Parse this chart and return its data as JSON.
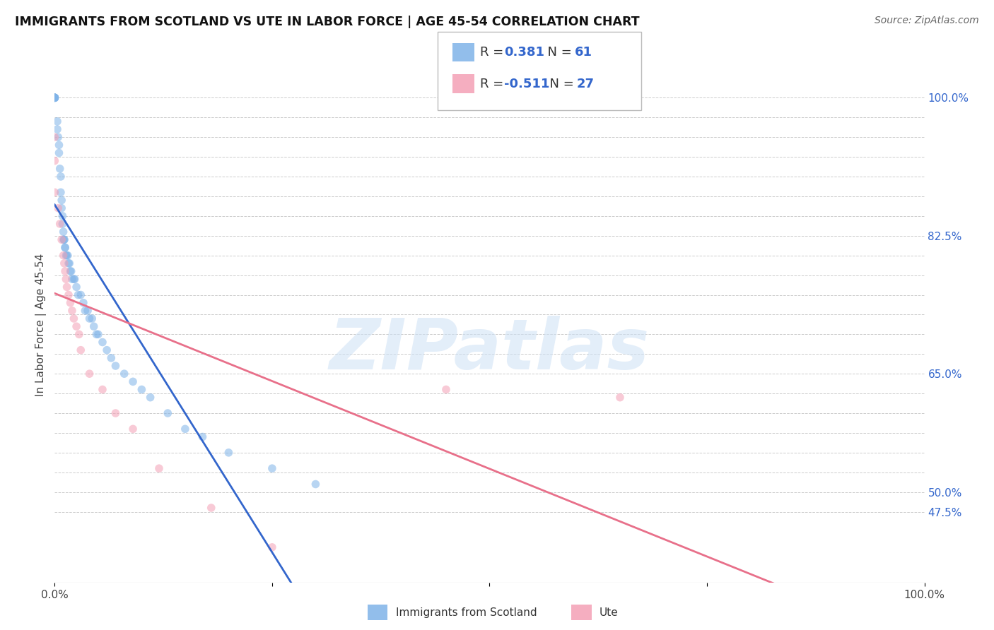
{
  "title": "IMMIGRANTS FROM SCOTLAND VS UTE IN LABOR FORCE | AGE 45-54 CORRELATION CHART",
  "source": "Source: ZipAtlas.com",
  "ylabel": "In Labor Force | Age 45-54",
  "xlim": [
    0.0,
    1.0
  ],
  "ylim": [
    0.385,
    1.04
  ],
  "grid_color": "#cccccc",
  "background_color": "#ffffff",
  "scotland_color": "#7fb3e8",
  "ute_color": "#f4a0b5",
  "scotland_line_color": "#3366cc",
  "ute_line_color": "#e8708a",
  "legend_color": "#3366cc",
  "R_scotland": 0.381,
  "N_scotland": 61,
  "R_ute": -0.511,
  "N_ute": 27,
  "scotland_x": [
    0.0,
    0.0,
    0.0,
    0.0,
    0.0,
    0.0,
    0.0,
    0.0,
    0.003,
    0.003,
    0.004,
    0.005,
    0.005,
    0.006,
    0.007,
    0.007,
    0.008,
    0.008,
    0.009,
    0.009,
    0.01,
    0.01,
    0.011,
    0.011,
    0.012,
    0.012,
    0.013,
    0.014,
    0.015,
    0.016,
    0.017,
    0.018,
    0.019,
    0.02,
    0.022,
    0.023,
    0.025,
    0.027,
    0.03,
    0.033,
    0.035,
    0.038,
    0.04,
    0.043,
    0.045,
    0.048,
    0.05,
    0.055,
    0.06,
    0.065,
    0.07,
    0.08,
    0.09,
    0.1,
    0.11,
    0.13,
    0.15,
    0.17,
    0.2,
    0.25,
    0.3
  ],
  "scotland_y": [
    1.0,
    1.0,
    1.0,
    1.0,
    1.0,
    1.0,
    1.0,
    1.0,
    0.97,
    0.96,
    0.95,
    0.94,
    0.93,
    0.91,
    0.9,
    0.88,
    0.87,
    0.86,
    0.85,
    0.84,
    0.83,
    0.82,
    0.82,
    0.82,
    0.81,
    0.81,
    0.8,
    0.8,
    0.8,
    0.79,
    0.79,
    0.78,
    0.78,
    0.77,
    0.77,
    0.77,
    0.76,
    0.75,
    0.75,
    0.74,
    0.73,
    0.73,
    0.72,
    0.72,
    0.71,
    0.7,
    0.7,
    0.69,
    0.68,
    0.67,
    0.66,
    0.65,
    0.64,
    0.63,
    0.62,
    0.6,
    0.58,
    0.57,
    0.55,
    0.53,
    0.51
  ],
  "ute_x": [
    0.0,
    0.0,
    0.0,
    0.004,
    0.006,
    0.008,
    0.01,
    0.011,
    0.012,
    0.013,
    0.014,
    0.016,
    0.018,
    0.02,
    0.022,
    0.025,
    0.028,
    0.03,
    0.04,
    0.055,
    0.07,
    0.09,
    0.12,
    0.18,
    0.25,
    0.45,
    0.65
  ],
  "ute_y": [
    0.95,
    0.92,
    0.88,
    0.86,
    0.84,
    0.82,
    0.8,
    0.79,
    0.78,
    0.77,
    0.76,
    0.75,
    0.74,
    0.73,
    0.72,
    0.71,
    0.7,
    0.68,
    0.65,
    0.63,
    0.6,
    0.58,
    0.53,
    0.48,
    0.43,
    0.63,
    0.62
  ],
  "watermark_text": "ZIPatlas",
  "marker_size": 70,
  "alpha": 0.55,
  "linewidth": 2.0,
  "shown_yticks": [
    0.475,
    0.5,
    0.65,
    0.825,
    1.0
  ],
  "shown_ytick_labels": [
    "47.5%",
    "50.0%",
    "65.0%",
    "82.5%",
    "100.0%"
  ],
  "all_yticks": [
    0.475,
    0.5,
    0.525,
    0.55,
    0.575,
    0.6,
    0.625,
    0.65,
    0.675,
    0.7,
    0.725,
    0.75,
    0.775,
    0.8,
    0.825,
    0.85,
    0.875,
    0.9,
    0.925,
    0.95,
    0.975,
    1.0
  ]
}
